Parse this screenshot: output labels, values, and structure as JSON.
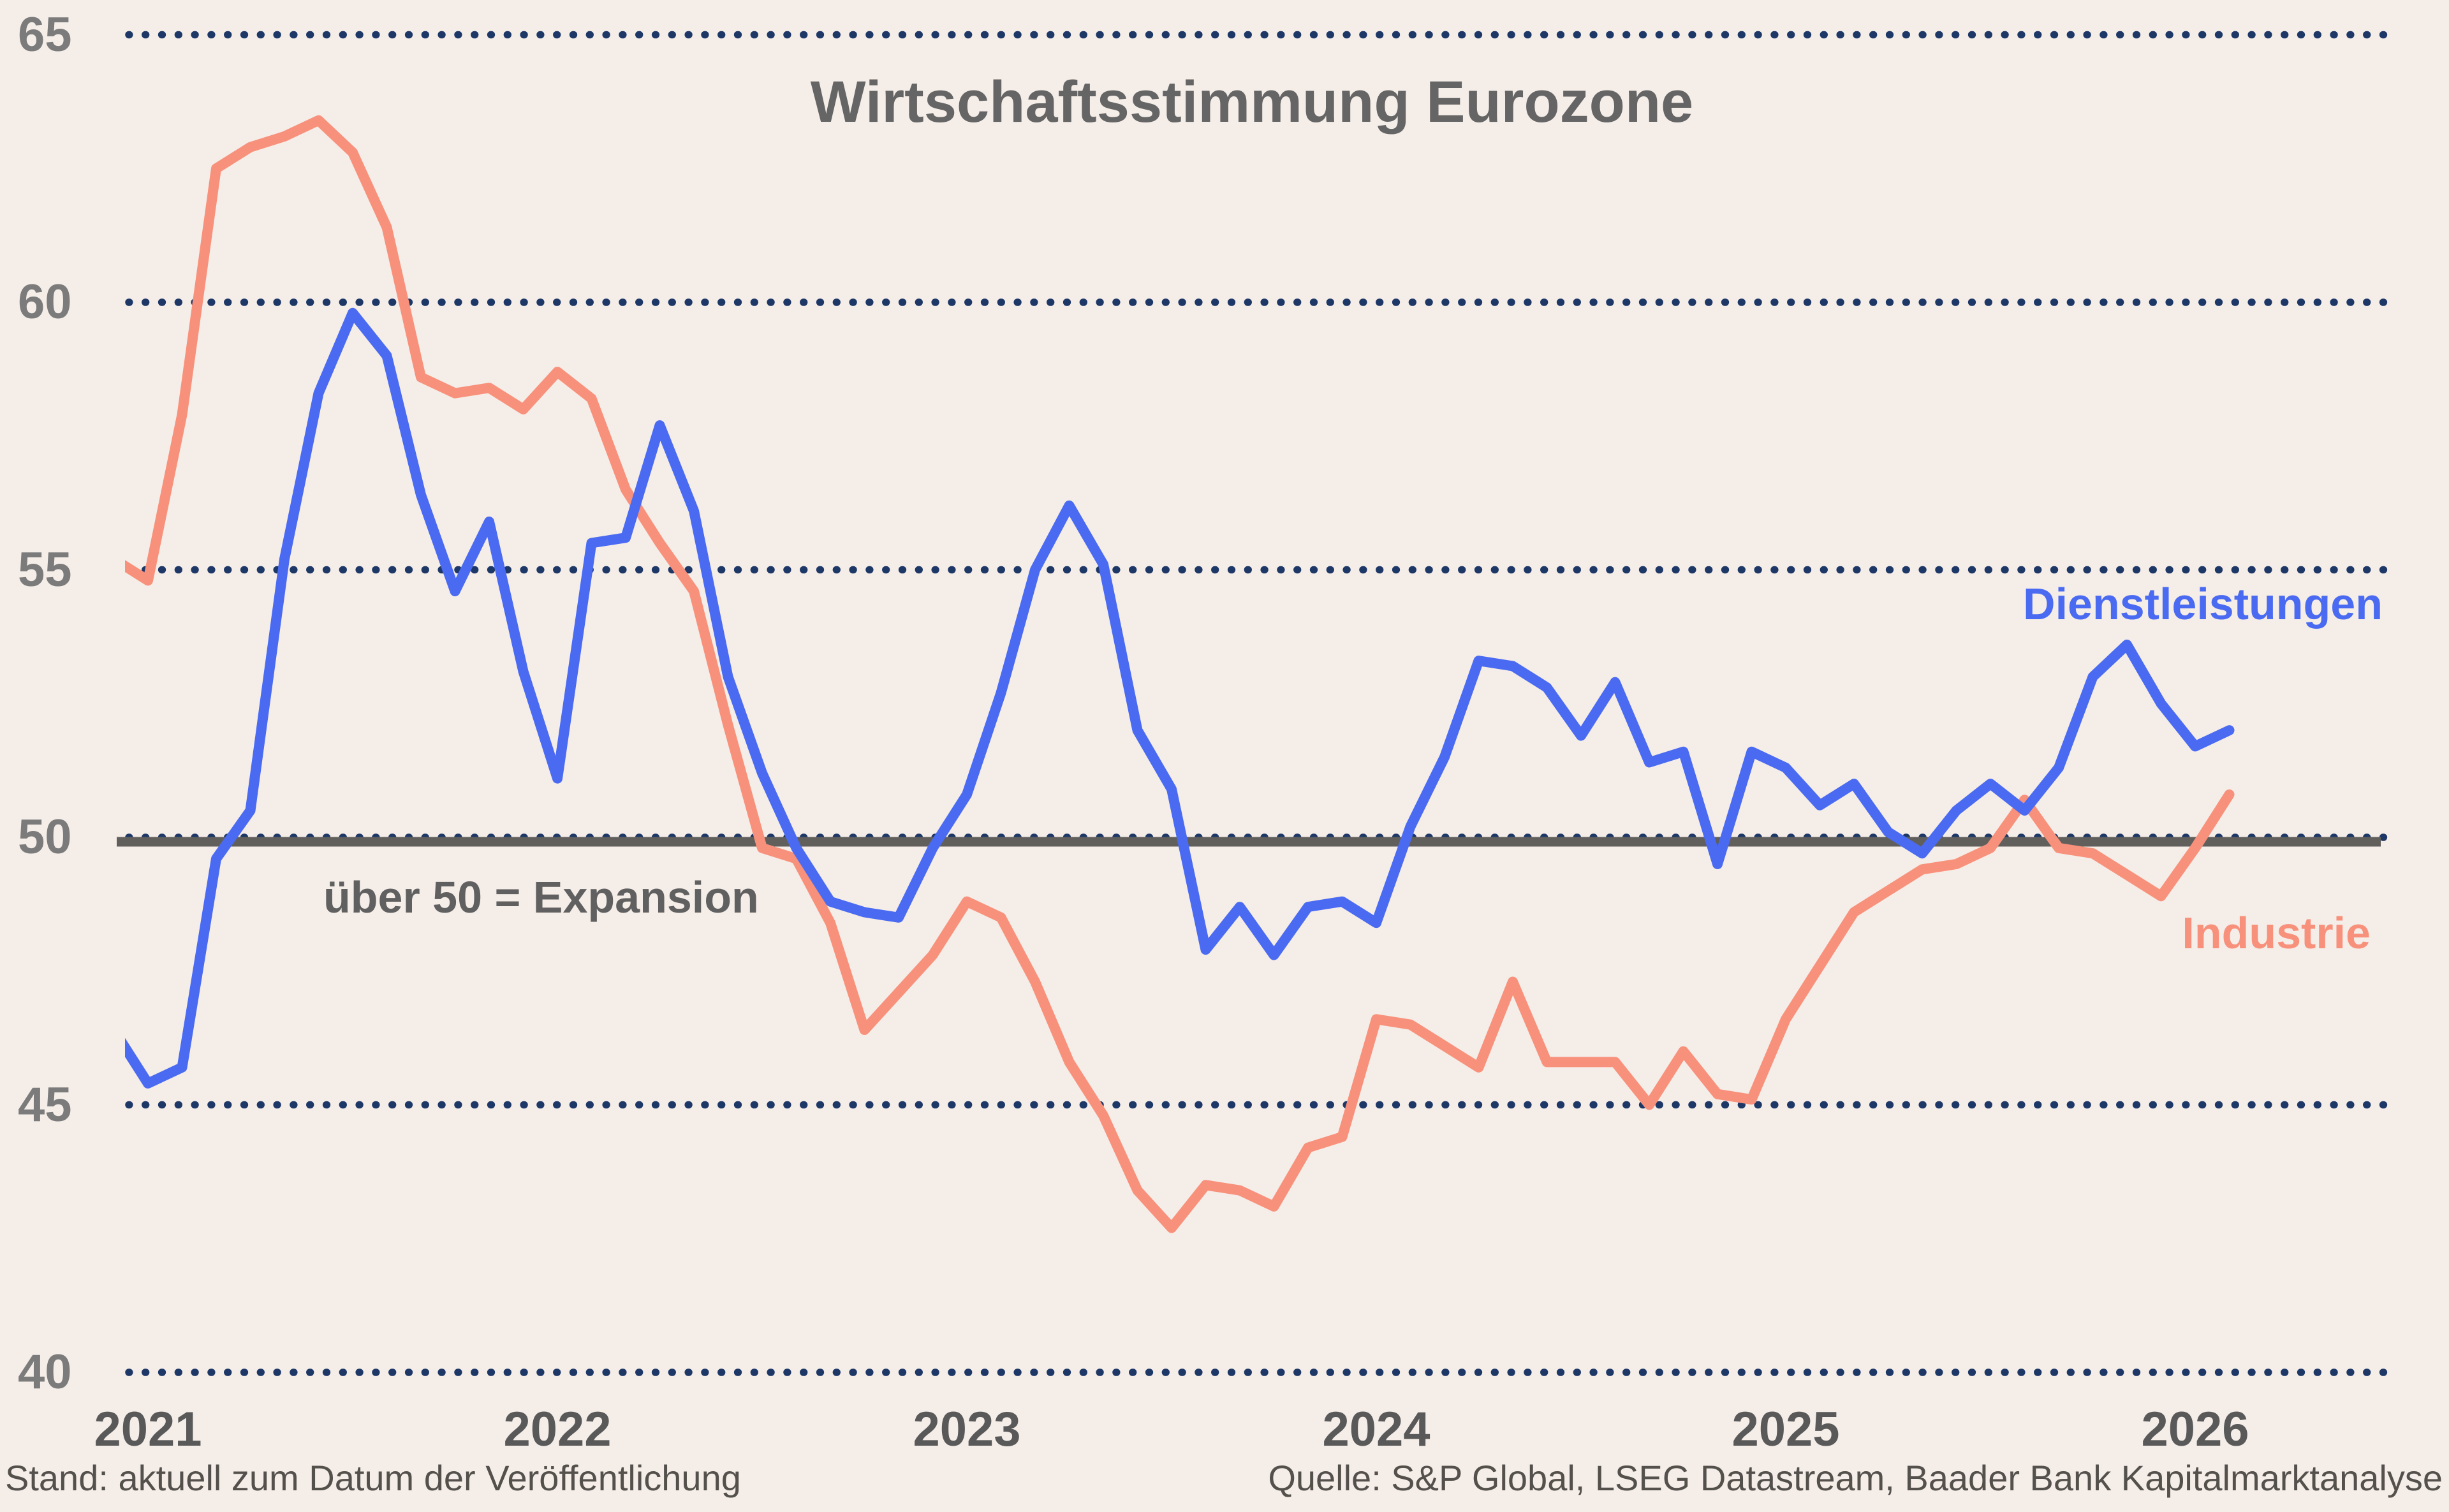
{
  "title": "Wirtschaftsstimmung Eurozone",
  "annotation": "über 50 = Expansion",
  "footer": {
    "left": "Stand: aktuell zum Datum der Veröffentlichung",
    "right": "Quelle: S&P Global, LSEG Datastream, Baader Bank Kapitalmarktanalyse"
  },
  "colors": {
    "background": "#f5ede8",
    "services_line": "#4a6bf1",
    "industry_line": "#f8917b",
    "grid_dots": "#1d3766",
    "baseline_line": "#615f5c",
    "title_text": "#656565",
    "annotation_text": "#606060",
    "y_axis_text": "#7b7b7b",
    "x_axis_text": "#595959",
    "footer_text": "#54504b"
  },
  "chart_data": {
    "type": "line",
    "title": "Wirtschaftsstimmung Eurozone",
    "xlabel": "",
    "ylabel": "",
    "ylim": [
      40,
      65
    ],
    "grid": "dotted horizontal gridlines at each y tick",
    "legend_position": "labels inline at right end of lines",
    "baseline": {
      "value": 50,
      "label": "über 50 = Expansion"
    },
    "y_ticks": [
      65,
      60,
      55,
      50,
      45,
      40
    ],
    "x_tick_labels": [
      "2021",
      "2022",
      "2023",
      "2024",
      "2025",
      "2026"
    ],
    "frequency": "monthly",
    "months": [
      "2020-12",
      "2021-01",
      "2021-02",
      "2021-03",
      "2021-04",
      "2021-05",
      "2021-06",
      "2021-07",
      "2021-08",
      "2021-09",
      "2021-10",
      "2021-11",
      "2021-12",
      "2022-01",
      "2022-02",
      "2022-03",
      "2022-04",
      "2022-05",
      "2022-06",
      "2022-07",
      "2022-08",
      "2022-09",
      "2022-10",
      "2022-11",
      "2022-12",
      "2023-01",
      "2023-02",
      "2023-03",
      "2023-04",
      "2023-05",
      "2023-06",
      "2023-07",
      "2023-08",
      "2023-09",
      "2023-10",
      "2023-11",
      "2023-12",
      "2024-01",
      "2024-02",
      "2024-03",
      "2024-04",
      "2024-05",
      "2024-06",
      "2024-07",
      "2024-08",
      "2024-09",
      "2024-10",
      "2024-11",
      "2024-12",
      "2025-01",
      "2025-02",
      "2025-03",
      "2025-04",
      "2025-05",
      "2025-06",
      "2025-07",
      "2025-08",
      "2025-09",
      "2025-10",
      "2025-11",
      "2025-12",
      "2026-01",
      "2026-02"
    ],
    "series": [
      {
        "id": "dienstleistungen",
        "name": "Dienstleistungen",
        "color": "#4a6bf1",
        "values": [
          46.4,
          45.4,
          45.7,
          49.6,
          50.5,
          55.2,
          58.3,
          59.8,
          59.0,
          56.4,
          54.6,
          55.9,
          53.1,
          51.1,
          55.5,
          55.6,
          57.7,
          56.1,
          53.0,
          51.2,
          49.8,
          48.8,
          48.6,
          48.5,
          49.8,
          50.8,
          52.7,
          55.0,
          56.2,
          55.1,
          52.0,
          50.9,
          47.9,
          48.7,
          47.8,
          48.7,
          48.8,
          48.4,
          50.2,
          51.5,
          53.3,
          53.2,
          52.8,
          51.9,
          52.9,
          51.4,
          51.6,
          49.5,
          51.6,
          51.3,
          50.6,
          51.0,
          50.1,
          49.7,
          50.5,
          51.0,
          50.5,
          51.3,
          53.0,
          53.6,
          52.5,
          51.7,
          52.0
        ]
      },
      {
        "id": "industrie",
        "name": "Industrie",
        "color": "#f8917b",
        "values": [
          55.2,
          54.8,
          57.9,
          62.5,
          62.9,
          63.1,
          63.4,
          62.8,
          61.4,
          58.6,
          58.3,
          58.4,
          58.0,
          58.7,
          58.2,
          56.5,
          55.5,
          54.6,
          52.1,
          49.8,
          49.6,
          48.4,
          46.4,
          47.1,
          47.8,
          48.8,
          48.5,
          47.3,
          45.8,
          44.8,
          43.4,
          42.7,
          43.5,
          43.4,
          43.1,
          44.2,
          44.4,
          46.6,
          46.5,
          46.1,
          45.7,
          47.3,
          45.8,
          45.8,
          45.8,
          45.0,
          46.0,
          45.2,
          45.1,
          46.6,
          47.6,
          48.6,
          49.0,
          49.4,
          49.5,
          49.8,
          50.7,
          49.8,
          49.7,
          49.3,
          48.9,
          49.8,
          50.8
        ]
      }
    ]
  }
}
